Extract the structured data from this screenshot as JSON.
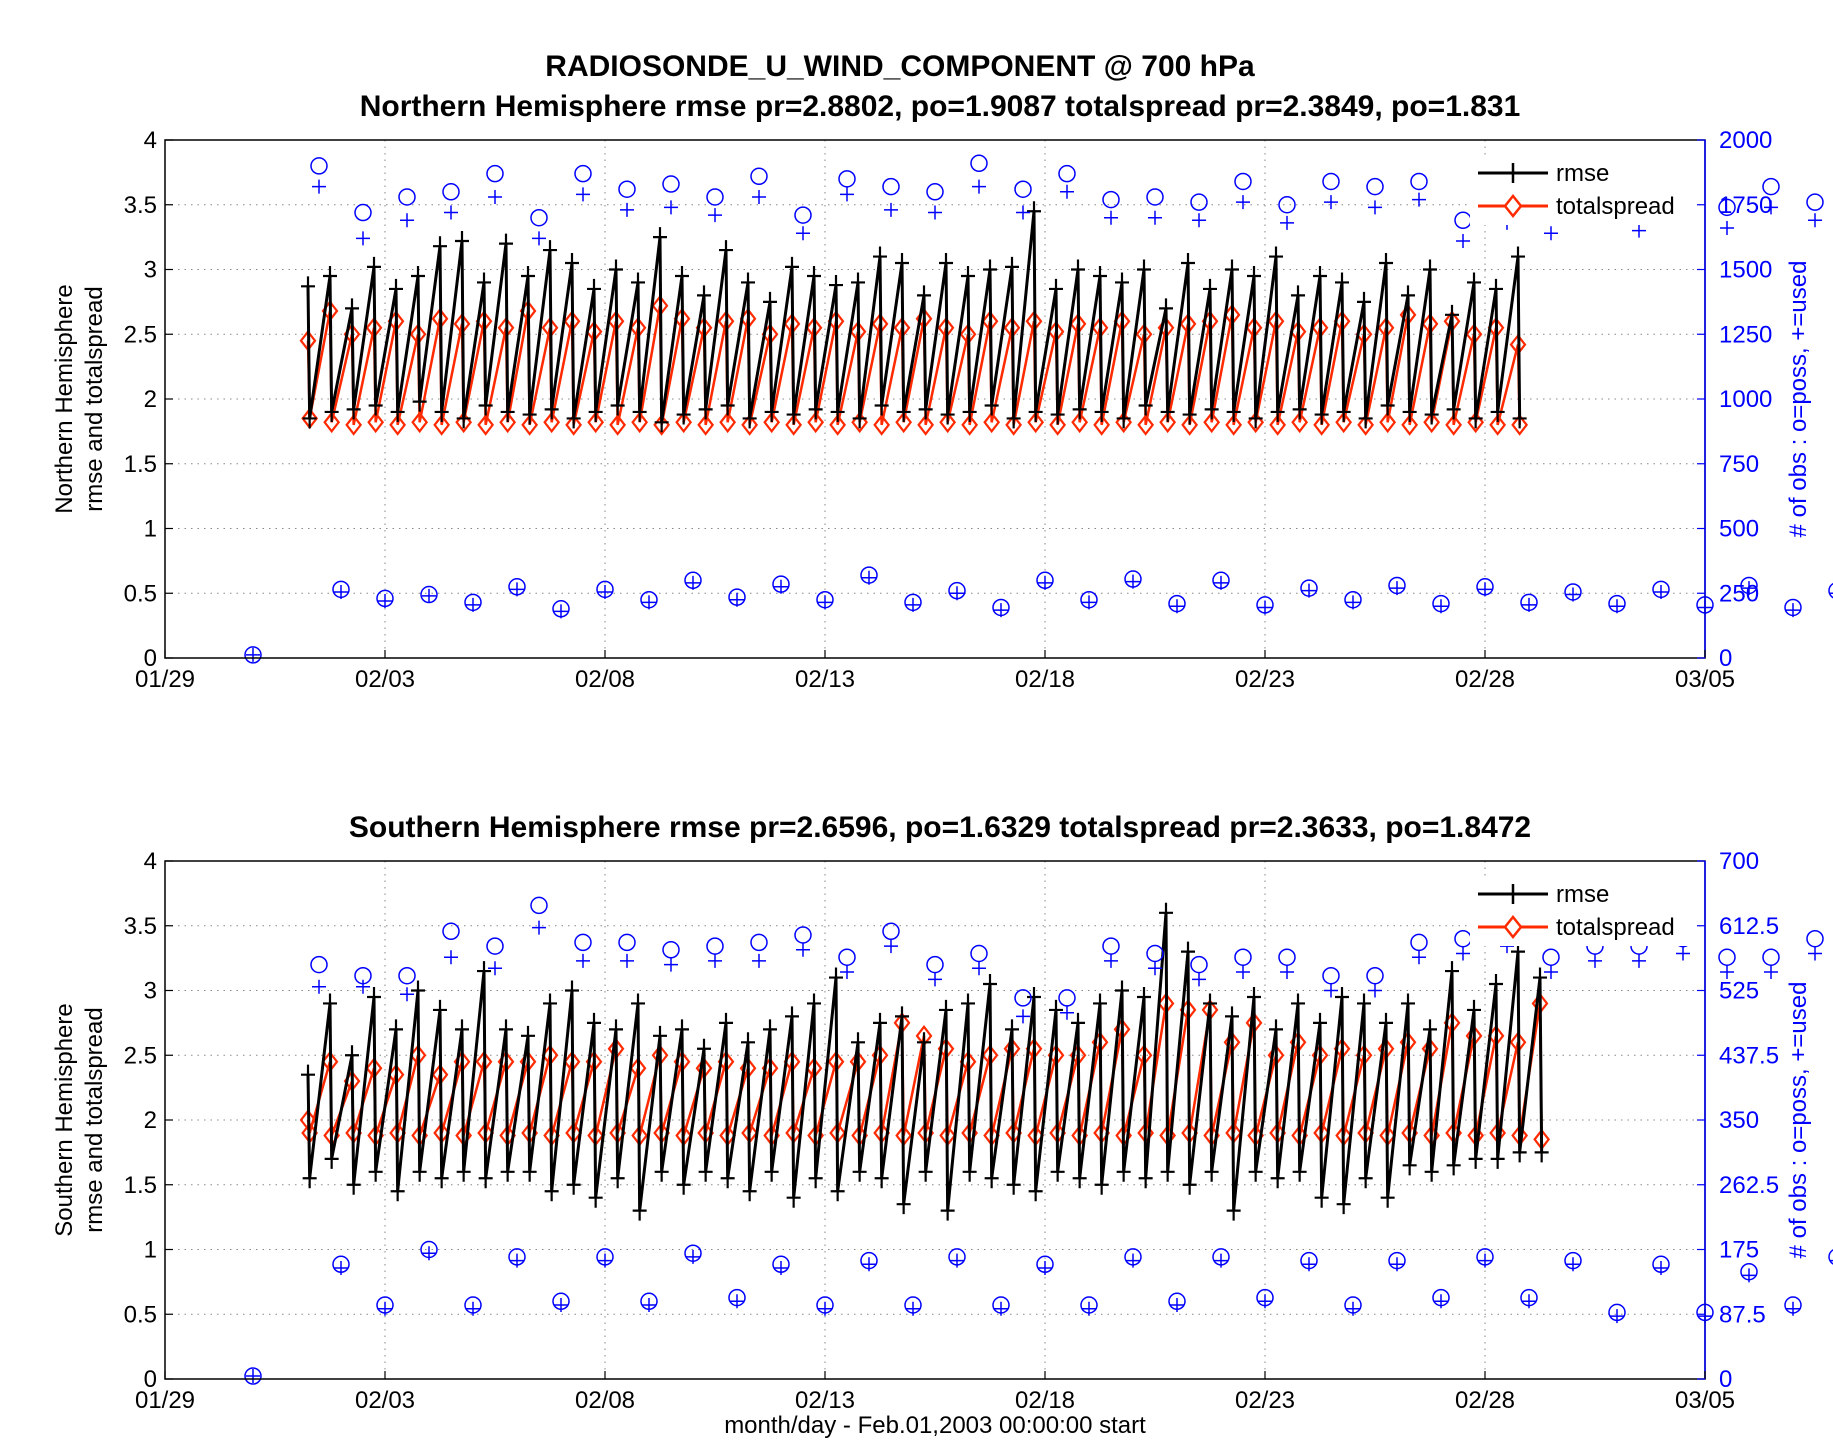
{
  "title": "RADIOSONDE_U_WIND_COMPONENT @ 700 hPa",
  "xlabel": "month/day - Feb.01,2003 00:00:00 start",
  "colors": {
    "rmse": "#000000",
    "totalspread": "#ff2a00",
    "obs": "#0000ff"
  },
  "chart_data": [
    {
      "type": "line",
      "title": "Northern Hemisphere      rmse pr=2.8802, po=1.9087      totalspread pr=2.3849, po=1.831",
      "ylabel_line1": "Northern Hemisphere",
      "ylabel_line2": "rmse and totalspread",
      "y2label": "# of obs : o=poss, +=used",
      "x_ticks": [
        "01/29",
        "02/03",
        "02/08",
        "02/13",
        "02/18",
        "02/23",
        "02/28",
        "03/05"
      ],
      "xlim": [
        "2003-01-29",
        "2003-03-05"
      ],
      "ylim": [
        0,
        4
      ],
      "y_ticks": [
        "0",
        "0.5",
        "1",
        "1.5",
        "2",
        "2.5",
        "3",
        "3.5",
        "4"
      ],
      "y2lim": [
        0,
        2000
      ],
      "y2_ticks": [
        "0",
        "250",
        "500",
        "750",
        "1000",
        "1250",
        "1500",
        "1750",
        "2000"
      ],
      "legend": [
        "rmse",
        "totalspread"
      ],
      "legend_position": "top-right",
      "grid": true,
      "cycle_start": "2003-02-01T00:00",
      "cycle_hours": 6,
      "series": [
        {
          "name": "rmse",
          "prior": [
            2.87,
            2.95,
            2.7,
            3.02,
            2.85,
            2.95,
            3.18,
            3.22,
            2.9,
            3.2,
            2.95,
            3.15,
            3.05,
            2.85,
            3.0,
            2.9,
            3.25,
            2.95,
            2.8,
            3.15,
            2.9,
            2.75,
            3.02,
            2.95,
            2.88,
            2.9,
            3.1,
            3.05,
            2.8,
            3.05,
            2.95,
            3.0,
            3.02,
            3.45,
            2.85,
            3.0,
            2.95,
            2.9,
            3.0,
            2.7,
            3.05,
            2.85,
            3.0,
            2.95,
            3.1,
            2.8,
            2.95,
            2.9,
            2.75,
            3.05,
            2.8,
            3.0,
            2.65,
            2.9,
            2.85,
            3.1
          ],
          "posterior": [
            1.85,
            1.9,
            1.92,
            1.95,
            1.9,
            1.98,
            1.9,
            1.85,
            1.95,
            1.9,
            1.88,
            1.92,
            1.85,
            1.9,
            1.95,
            1.9,
            1.82,
            1.88,
            1.92,
            1.95,
            1.85,
            1.9,
            1.88,
            1.92,
            1.9,
            1.85,
            1.95,
            1.9,
            1.92,
            1.88,
            1.9,
            1.95,
            1.85,
            1.9,
            1.88,
            1.92,
            1.9,
            1.85,
            1.95,
            1.9,
            1.88,
            1.92,
            1.9,
            1.85,
            1.9,
            1.92,
            1.88,
            1.9,
            1.85,
            1.95,
            1.9,
            1.88,
            1.92,
            1.85,
            1.9,
            1.85
          ]
        },
        {
          "name": "totalspread",
          "prior": [
            2.45,
            2.68,
            2.5,
            2.55,
            2.6,
            2.5,
            2.62,
            2.58,
            2.6,
            2.55,
            2.68,
            2.55,
            2.6,
            2.52,
            2.6,
            2.55,
            2.72,
            2.62,
            2.55,
            2.6,
            2.62,
            2.5,
            2.58,
            2.55,
            2.6,
            2.52,
            2.58,
            2.55,
            2.62,
            2.55,
            2.5,
            2.6,
            2.55,
            2.6,
            2.52,
            2.58,
            2.55,
            2.6,
            2.5,
            2.55,
            2.58,
            2.6,
            2.65,
            2.55,
            2.6,
            2.52,
            2.55,
            2.6,
            2.5,
            2.55,
            2.65,
            2.58,
            2.6,
            2.5,
            2.55,
            2.42
          ],
          "posterior": [
            1.85,
            1.82,
            1.8,
            1.82,
            1.8,
            1.82,
            1.8,
            1.82,
            1.8,
            1.82,
            1.8,
            1.82,
            1.8,
            1.82,
            1.8,
            1.82,
            1.8,
            1.82,
            1.8,
            1.82,
            1.8,
            1.82,
            1.8,
            1.82,
            1.8,
            1.82,
            1.8,
            1.82,
            1.8,
            1.82,
            1.8,
            1.82,
            1.8,
            1.82,
            1.8,
            1.82,
            1.8,
            1.82,
            1.8,
            1.82,
            1.8,
            1.82,
            1.8,
            1.82,
            1.8,
            1.82,
            1.8,
            1.82,
            1.8,
            1.82,
            1.8,
            1.82,
            1.8,
            1.82,
            1.8,
            1.8
          ]
        },
        {
          "name": "obs_poss_00z",
          "values": [
            1900,
            1720,
            1780,
            1800,
            1870,
            1700,
            1870,
            1810,
            1830,
            1780,
            1860,
            1710,
            1850,
            1820,
            1800,
            1910,
            1810,
            1870,
            1770,
            1780,
            1760,
            1840,
            1750,
            1840,
            1820,
            1840,
            1690,
            1770,
            1710,
            1810,
            1710,
            1800,
            1740,
            1820,
            1760,
            1860,
            1860,
            1730,
            1840,
            1760,
            1880,
            1710,
            1830,
            1850,
            1840,
            1720,
            1890,
            1740,
            1910,
            1740,
            1910,
            1740,
            1720,
            1780,
            1720,
            1730
          ]
        },
        {
          "name": "obs_used_00z",
          "values": [
            1820,
            1620,
            1690,
            1720,
            1780,
            1620,
            1790,
            1730,
            1740,
            1710,
            1780,
            1640,
            1790,
            1730,
            1720,
            1820,
            1720,
            1800,
            1700,
            1700,
            1690,
            1760,
            1680,
            1760,
            1740,
            1770,
            1610,
            1680,
            1640,
            1720,
            1650,
            1720,
            1660,
            1740,
            1690,
            1780,
            1780,
            1660,
            1760,
            1690,
            1800,
            1620,
            1740,
            1770,
            1760,
            1640,
            1810,
            1660,
            1820,
            1650,
            1800,
            1660,
            1650,
            1700,
            1640,
            1650
          ]
        },
        {
          "name": "obs_poss_12z",
          "values": [
            12,
            265,
            230,
            245,
            215,
            275,
            190,
            265,
            225,
            300,
            235,
            285,
            225,
            320,
            215,
            260,
            195,
            300,
            225,
            305,
            210,
            300,
            205,
            270,
            225,
            280,
            210,
            275,
            215,
            255,
            210,
            265,
            205,
            280,
            195,
            260,
            205,
            255,
            195,
            255,
            215,
            225,
            225,
            220,
            215,
            230,
            230,
            250,
            240,
            300,
            220,
            295,
            225,
            330,
            230,
            300,
            220
          ]
        },
        {
          "name": "obs_used_12z",
          "values": [
            12,
            255,
            220,
            240,
            205,
            265,
            180,
            255,
            215,
            290,
            225,
            275,
            215,
            310,
            205,
            250,
            185,
            290,
            215,
            295,
            200,
            290,
            195,
            260,
            215,
            270,
            200,
            265,
            205,
            245,
            200,
            255,
            195,
            270,
            185,
            250,
            195,
            245,
            185,
            245,
            205,
            215,
            215,
            210,
            205,
            220,
            220,
            240,
            230,
            290,
            210,
            285,
            215,
            320,
            220,
            290,
            210
          ]
        }
      ]
    },
    {
      "type": "line",
      "title": "Southern Hemisphere      rmse pr=2.6596, po=1.6329      totalspread pr=2.3633, po=1.8472",
      "ylabel_line1": "Southern Hemisphere",
      "ylabel_line2": "rmse and totalspread",
      "y2label": "# of obs : o=poss, +=used",
      "x_ticks": [
        "01/29",
        "02/03",
        "02/08",
        "02/13",
        "02/18",
        "02/23",
        "02/28",
        "03/05"
      ],
      "xlim": [
        "2003-01-29",
        "2003-03-05"
      ],
      "ylim": [
        0,
        4
      ],
      "y_ticks": [
        "0",
        "0.5",
        "1",
        "1.5",
        "2",
        "2.5",
        "3",
        "3.5",
        "4"
      ],
      "y2lim": [
        0,
        700
      ],
      "y2_ticks": [
        "0",
        "87.5",
        "175",
        "262.5",
        "350",
        "437.5",
        "525",
        "612.5",
        "700"
      ],
      "legend": [
        "rmse",
        "totalspread"
      ],
      "legend_position": "top-right",
      "grid": true,
      "cycle_start": "2003-02-01T00:00",
      "cycle_hours": 6,
      "series": [
        {
          "name": "rmse",
          "prior": [
            2.35,
            2.9,
            2.5,
            2.95,
            2.7,
            3.0,
            2.85,
            2.7,
            3.15,
            2.7,
            2.65,
            2.9,
            3.0,
            2.75,
            2.7,
            2.9,
            2.65,
            2.7,
            2.55,
            2.75,
            2.6,
            2.7,
            2.8,
            2.9,
            3.1,
            2.6,
            2.75,
            2.8,
            2.6,
            2.85,
            2.9,
            3.05,
            2.7,
            2.95,
            2.85,
            2.75,
            2.9,
            3.0,
            2.95,
            3.6,
            3.3,
            2.9,
            2.8,
            2.95,
            2.7,
            2.9,
            2.75,
            2.95,
            2.9,
            2.75,
            2.9,
            2.7,
            3.15,
            2.85,
            3.05,
            3.3,
            3.1
          ],
          "posterior": [
            1.55,
            1.7,
            1.5,
            1.6,
            1.45,
            1.6,
            1.55,
            1.6,
            1.55,
            1.6,
            1.6,
            1.45,
            1.5,
            1.4,
            1.55,
            1.3,
            1.6,
            1.5,
            1.6,
            1.55,
            1.45,
            1.6,
            1.4,
            1.55,
            1.45,
            1.6,
            1.55,
            1.35,
            1.6,
            1.3,
            1.6,
            1.55,
            1.5,
            1.45,
            1.6,
            1.55,
            1.5,
            1.6,
            1.55,
            1.6,
            1.5,
            1.6,
            1.3,
            1.6,
            1.55,
            1.6,
            1.4,
            1.35,
            1.55,
            1.4,
            1.65,
            1.6,
            1.65,
            1.7,
            1.7,
            1.75,
            1.75
          ]
        },
        {
          "name": "totalspread",
          "prior": [
            2.0,
            2.45,
            2.3,
            2.4,
            2.35,
            2.5,
            2.35,
            2.45,
            2.45,
            2.45,
            2.45,
            2.5,
            2.45,
            2.45,
            2.55,
            2.4,
            2.5,
            2.45,
            2.4,
            2.45,
            2.4,
            2.4,
            2.45,
            2.4,
            2.45,
            2.45,
            2.5,
            2.75,
            2.65,
            2.55,
            2.45,
            2.5,
            2.55,
            2.55,
            2.5,
            2.5,
            2.6,
            2.7,
            2.5,
            2.9,
            2.85,
            2.85,
            2.6,
            2.75,
            2.5,
            2.6,
            2.5,
            2.55,
            2.5,
            2.55,
            2.6,
            2.55,
            2.75,
            2.65,
            2.65,
            2.6,
            2.9
          ],
          "posterior": [
            1.9,
            1.88,
            1.9,
            1.88,
            1.9,
            1.88,
            1.9,
            1.88,
            1.9,
            1.88,
            1.9,
            1.88,
            1.9,
            1.88,
            1.9,
            1.88,
            1.9,
            1.88,
            1.9,
            1.88,
            1.9,
            1.88,
            1.9,
            1.88,
            1.9,
            1.88,
            1.9,
            1.88,
            1.9,
            1.88,
            1.9,
            1.88,
            1.9,
            1.88,
            1.9,
            1.88,
            1.9,
            1.88,
            1.9,
            1.88,
            1.9,
            1.88,
            1.9,
            1.88,
            1.9,
            1.88,
            1.9,
            1.88,
            1.9,
            1.88,
            1.9,
            1.88,
            1.9,
            1.88,
            1.9,
            1.88,
            1.85
          ]
        },
        {
          "name": "obs_poss_00z",
          "values": [
            560,
            545,
            545,
            605,
            585,
            640,
            590,
            590,
            580,
            585,
            590,
            600,
            570,
            605,
            560,
            575,
            515,
            515,
            585,
            575,
            560,
            570,
            570,
            545,
            545,
            590,
            595,
            605,
            570,
            585,
            585,
            595,
            570,
            570,
            595,
            525,
            545,
            520,
            530,
            520,
            580,
            535,
            565,
            590,
            560,
            500,
            575,
            565,
            595,
            575,
            590,
            570,
            560,
            555
          ]
        },
        {
          "name": "obs_used_00z",
          "values": [
            530,
            530,
            520,
            570,
            555,
            610,
            565,
            565,
            560,
            565,
            565,
            580,
            550,
            585,
            540,
            555,
            490,
            495,
            565,
            555,
            540,
            550,
            550,
            525,
            525,
            570,
            575,
            585,
            550,
            565,
            565,
            575,
            550,
            550,
            575,
            505,
            525,
            500,
            510,
            500,
            560,
            515,
            545,
            570,
            540,
            480,
            555,
            545,
            575,
            555,
            570,
            550,
            540,
            535
          ]
        },
        {
          "name": "obs_poss_12z",
          "values": [
            4,
            155,
            100,
            175,
            100,
            165,
            105,
            165,
            105,
            170,
            110,
            155,
            100,
            160,
            100,
            165,
            100,
            155,
            100,
            165,
            105,
            165,
            110,
            160,
            100,
            160,
            110,
            165,
            110,
            160,
            90,
            155,
            90,
            145,
            100,
            165,
            100,
            155,
            95,
            145,
            105,
            150,
            85,
            150,
            95,
            170,
            115,
            165,
            105,
            150,
            115,
            185,
            120,
            175,
            120,
            160,
            90
          ]
        },
        {
          "name": "obs_used_12z",
          "values": [
            4,
            150,
            95,
            170,
            95,
            160,
            100,
            160,
            100,
            165,
            105,
            150,
            95,
            155,
            95,
            160,
            95,
            150,
            95,
            160,
            100,
            160,
            105,
            155,
            95,
            155,
            105,
            160,
            105,
            155,
            85,
            150,
            85,
            140,
            95,
            160,
            95,
            150,
            90,
            140,
            100,
            145,
            80,
            145,
            90,
            165,
            110,
            160,
            100,
            145,
            110,
            180,
            115,
            170,
            115,
            155,
            85
          ]
        }
      ]
    }
  ]
}
